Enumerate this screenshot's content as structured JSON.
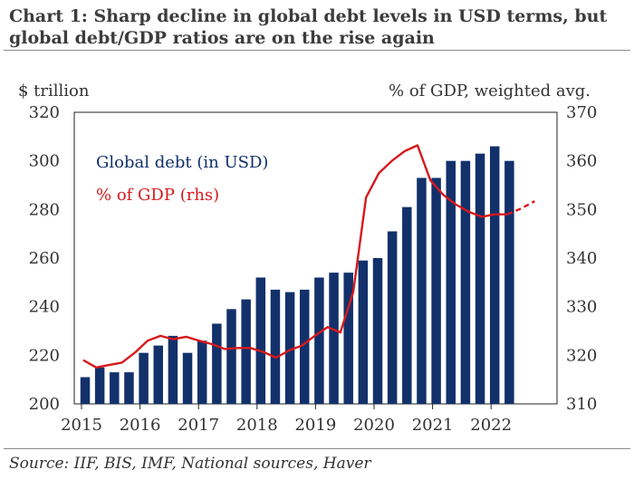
{
  "chart_data": {
    "type": "bar+line",
    "title": "Chart 1: Sharp decline in global debt levels in USD terms, but global debt/GDP ratios are on the rise again",
    "source": "Source: IIF, BIS, IMF, National sources, Haver",
    "left_axis_label": "$ trillion",
    "right_axis_label": "% of GDP, weighted avg.",
    "left_ylim": [
      200,
      320
    ],
    "left_ticks": [
      200,
      220,
      240,
      260,
      280,
      300,
      320
    ],
    "right_ylim": [
      310,
      370
    ],
    "right_ticks": [
      310,
      320,
      330,
      340,
      350,
      360,
      370
    ],
    "x_ticks": [
      {
        "label": "2015",
        "q": 0
      },
      {
        "label": "2016",
        "q": 4
      },
      {
        "label": "2017",
        "q": 8
      },
      {
        "label": "2018",
        "q": 12
      },
      {
        "label": "2019",
        "q": 16
      },
      {
        "label": "2020",
        "q": 20
      },
      {
        "label": "2021",
        "q": 24
      },
      {
        "label": "2022",
        "q": 28
      }
    ],
    "legend": [
      {
        "label": "Global debt (in USD)",
        "color": "#12316b"
      },
      {
        "label": "% of GDP (rhs)",
        "color": "#d7191c"
      }
    ],
    "series": [
      {
        "name": "Global debt (in USD)",
        "type": "bar",
        "axis": "left",
        "color": "#12316b",
        "values": [
          211,
          215,
          213,
          213,
          221,
          224,
          228,
          221,
          226,
          233,
          239,
          243,
          252,
          247,
          246,
          247,
          252,
          254,
          254,
          259,
          260,
          271,
          281,
          293,
          293,
          300,
          300,
          303,
          306,
          300
        ]
      },
      {
        "name": "% of GDP (rhs)",
        "type": "line",
        "axis": "right",
        "color": "#d7191c",
        "values": [
          319,
          317.5,
          318,
          318.5,
          320.5,
          323,
          324,
          323.3,
          323.8,
          323,
          322.3,
          321.3,
          321.5,
          321.5,
          320.7,
          319.5,
          321,
          322,
          324,
          325.8,
          324.7,
          333,
          352.5,
          357.5,
          360,
          362,
          363.2,
          356,
          353,
          351,
          349.5,
          348.5,
          349,
          349
        ],
        "projection": [
          349,
          350.2,
          351.7
        ]
      }
    ]
  }
}
